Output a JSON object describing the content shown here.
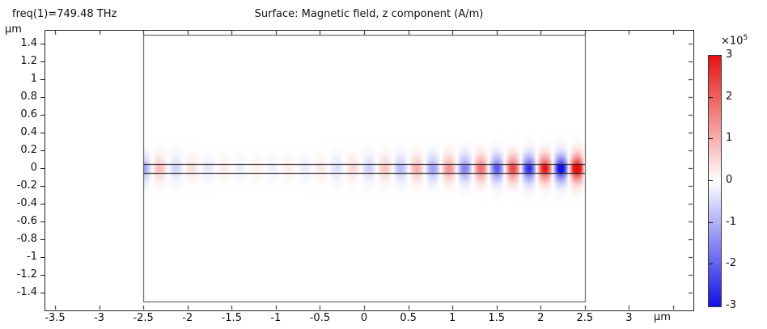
{
  "header": {
    "param_label": "freq(1)=749.48 THz",
    "plot_title": "Surface: Magnetic field, z component (A/m)"
  },
  "axes": {
    "x_unit": "μm",
    "y_unit": "μm",
    "x_tick_labels": [
      "-3.5",
      "-3",
      "-2.5",
      "-2",
      "-1.5",
      "-1",
      "-0.5",
      "0",
      "0.5",
      "1",
      "1.5",
      "2",
      "2.5",
      "3"
    ],
    "x_tick_values": [
      -3.5,
      -3,
      -2.5,
      -2,
      -1.5,
      -1,
      -0.5,
      0,
      0.5,
      1,
      1.5,
      2,
      2.5,
      3
    ],
    "x_tick_values_all": [
      -3.5,
      -3,
      -2.5,
      -2,
      -1.5,
      -1,
      -0.5,
      0,
      0.5,
      1,
      1.5,
      2,
      2.5,
      3,
      3.5
    ],
    "y_tick_labels": [
      "1.4",
      "1.2",
      "1",
      "0.8",
      "0.6",
      "0.4",
      "0.2",
      "0",
      "-0.2",
      "-0.4",
      "-0.6",
      "-0.8",
      "-1",
      "-1.2",
      "-1.4"
    ],
    "y_tick_values": [
      1.4,
      1.2,
      1,
      0.8,
      0.6,
      0.4,
      0.2,
      0,
      -0.2,
      -0.4,
      -0.6,
      -0.8,
      -1,
      -1.2,
      -1.4
    ]
  },
  "colorbar": {
    "multiplier": "×10",
    "exponent": "5",
    "tick_labels": [
      "3",
      "2",
      "1",
      "0",
      "-1",
      "-2",
      "-3"
    ],
    "tick_values": [
      3,
      2,
      1,
      0,
      -1,
      -2,
      -3
    ],
    "inner_tick_values": [
      2,
      1,
      0,
      -1,
      -2
    ],
    "top_color": "#e61212",
    "mid_color": "#ffffff",
    "bottom_color": "#1212e6"
  },
  "chart_data": {
    "type": "heatmap",
    "title": "Surface: Magnetic field, z component (A/m)",
    "condition": "freq(1)=749.48 THz",
    "units": {
      "x": "μm",
      "y": "μm",
      "value": "A/m"
    },
    "xlim": [
      -3.61,
      3.72
    ],
    "ylim": [
      -1.59,
      1.55
    ],
    "value_scale": 100000,
    "value_range": [
      -300000,
      300000
    ],
    "grid": false,
    "legend_position": "right-colorbar",
    "geometry": {
      "domain_rect_um": {
        "x": [
          -2.5,
          2.5
        ],
        "y": [
          -1.5,
          1.5
        ]
      },
      "waveguide_strip_um": {
        "x": [
          -2.5,
          2.5
        ],
        "y": [
          -0.05,
          0.05
        ]
      }
    },
    "field_model": {
      "description": "Guided wave Hz pattern: alternating red/blue lobes along the waveguide; moderate amplitude at left edge decaying toward x≈-1, then growing ~quadratically to saturation at the right edge (second-harmonic-like growth).",
      "wavelength_um": 0.363,
      "red_peak_x_um": 2.41,
      "envelope": {
        "right_amp": 1.06,
        "right_power": 2.8,
        "left_amp": 0.32,
        "left_decay_um": 0.5
      },
      "transverse_profile": {
        "width_um": 0.14,
        "power": 1.7
      },
      "strip_boost": 1.25
    },
    "colormap": {
      "negative": "#1212e6",
      "zero": "#ffffff",
      "positive": "#e61212"
    },
    "outline_colors": {
      "domain_rect": "#4d4d4d",
      "waveguide_lines": "#1a1a1a",
      "axes_box": "#262626"
    }
  }
}
